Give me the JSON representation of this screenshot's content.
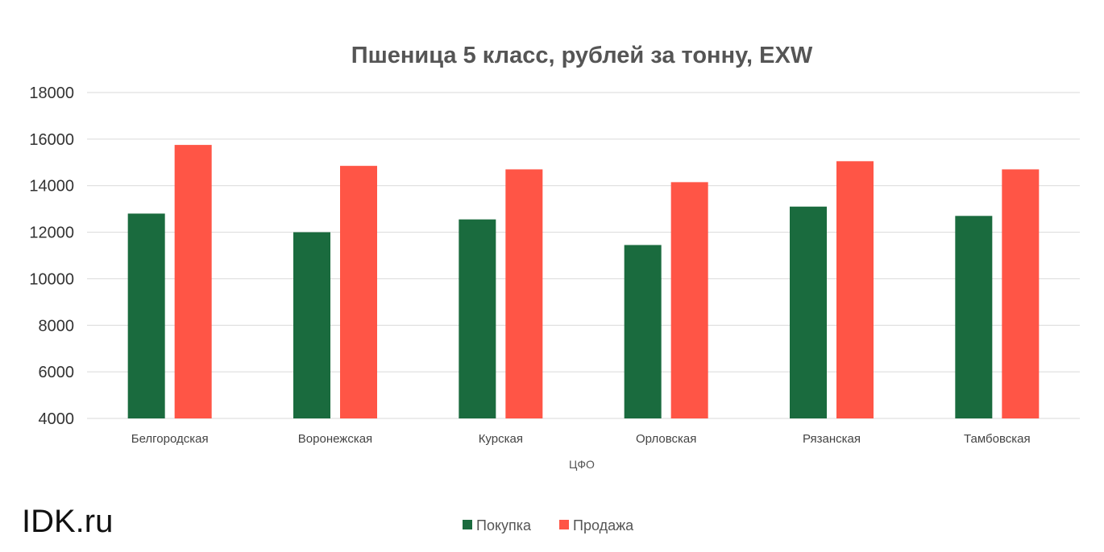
{
  "watermark": "IDK.ru",
  "colors": {
    "buy": "#1a6b3e",
    "sell": "#ff5546",
    "grid": "#d9d9d9"
  },
  "chart_data": {
    "type": "bar",
    "title": "Пшеница 5 класс, рублей за тонну, EXW",
    "xlabel": "ЦФО",
    "ylabel": "",
    "ylim": [
      4000,
      18000
    ],
    "yticks": [
      4000,
      6000,
      8000,
      10000,
      12000,
      14000,
      16000,
      18000
    ],
    "grid": true,
    "legend_position": "bottom",
    "categories": [
      "Белгородская",
      "Воронежская",
      "Курская",
      "Орловская",
      "Рязанская",
      "Тамбовская"
    ],
    "series": [
      {
        "name": "Покупка",
        "color": "#1a6b3e",
        "values": [
          12800,
          12000,
          12550,
          11450,
          13100,
          12700
        ]
      },
      {
        "name": "Продажа",
        "color": "#ff5546",
        "values": [
          15750,
          14850,
          14700,
          14150,
          15050,
          14700
        ]
      }
    ]
  }
}
